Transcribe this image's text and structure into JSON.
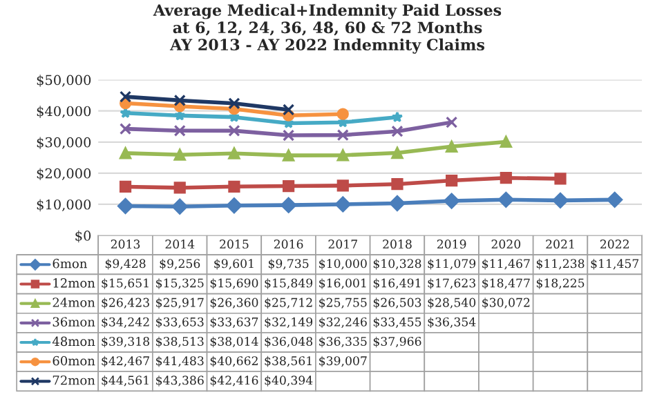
{
  "chart_data": {
    "type": "line",
    "title": "Average Medical+Indemnity Paid Losses\nat 6, 12, 24, 36, 48, 60 & 72 Months\nAY 2013 - AY 2022 Indemnity Claims",
    "categories": [
      "2013",
      "2014",
      "2015",
      "2016",
      "2017",
      "2018",
      "2019",
      "2020",
      "2021",
      "2022"
    ],
    "series": [
      {
        "name": "6mon",
        "color": "#4a7ebb",
        "marker": "diamond",
        "values": [
          9428,
          9256,
          9601,
          9735,
          10000,
          10328,
          11079,
          11467,
          11238,
          11457
        ],
        "value_labels": [
          "$9,428",
          "$9,256",
          "$9,601",
          "$9,735",
          "$10,000",
          "$10,328",
          "$11,079",
          "$11,467",
          "$11,238",
          "$11,457"
        ]
      },
      {
        "name": "12mon",
        "color": "#be4b48",
        "marker": "square",
        "values": [
          15651,
          15325,
          15690,
          15849,
          16001,
          16491,
          17623,
          18477,
          18225,
          null
        ],
        "value_labels": [
          "$15,651",
          "$15,325",
          "$15,690",
          "$15,849",
          "$16,001",
          "$16,491",
          "$17,623",
          "$18,477",
          "$18,225",
          null
        ]
      },
      {
        "name": "24mon",
        "color": "#98b954",
        "marker": "triangle",
        "values": [
          26423,
          25917,
          26360,
          25712,
          25755,
          26503,
          28540,
          30072,
          null,
          null
        ],
        "value_labels": [
          "$26,423",
          "$25,917",
          "$26,360",
          "$25,712",
          "$25,755",
          "$26,503",
          "$28,540",
          "$30,072",
          null,
          null
        ]
      },
      {
        "name": "36mon",
        "color": "#7d60a0",
        "marker": "cross",
        "values": [
          34242,
          33653,
          33637,
          32149,
          32246,
          33455,
          36354,
          null,
          null,
          null
        ],
        "value_labels": [
          "$34,242",
          "$33,653",
          "$33,637",
          "$32,149",
          "$32,246",
          "$33,455",
          "$36,354",
          null,
          null,
          null
        ]
      },
      {
        "name": "48mon",
        "color": "#46aac5",
        "marker": "star",
        "values": [
          39318,
          38513,
          38014,
          36048,
          36335,
          37966,
          null,
          null,
          null,
          null
        ],
        "value_labels": [
          "$39,318",
          "$38,513",
          "$38,014",
          "$36,048",
          "$36,335",
          "$37,966",
          null,
          null,
          null,
          null
        ]
      },
      {
        "name": "60mon",
        "color": "#f69240",
        "marker": "circle",
        "values": [
          42467,
          41483,
          40662,
          38561,
          39007,
          null,
          null,
          null,
          null,
          null
        ],
        "value_labels": [
          "$42,467",
          "$41,483",
          "$40,662",
          "$38,561",
          "$39,007",
          null,
          null,
          null,
          null,
          null
        ]
      },
      {
        "name": "72mon",
        "color": "#1f3864",
        "marker": "cross",
        "values": [
          44561,
          43386,
          42416,
          40394,
          null,
          null,
          null,
          null,
          null,
          null
        ],
        "value_labels": [
          "$44,561",
          "$43,386",
          "$42,416",
          "$40,394",
          null,
          null,
          null,
          null,
          null,
          null
        ]
      }
    ],
    "ylim": [
      0,
      50000
    ],
    "yticks": [
      {
        "value": 0,
        "label": "$0"
      },
      {
        "value": 10000,
        "label": "$10,000"
      },
      {
        "value": 20000,
        "label": "$20,000"
      },
      {
        "value": 30000,
        "label": "$30,000"
      },
      {
        "value": 40000,
        "label": "$40,000"
      },
      {
        "value": 50000,
        "label": "$50,000"
      }
    ],
    "grid": "y",
    "legend": "bottom left",
    "data_labels": true
  }
}
